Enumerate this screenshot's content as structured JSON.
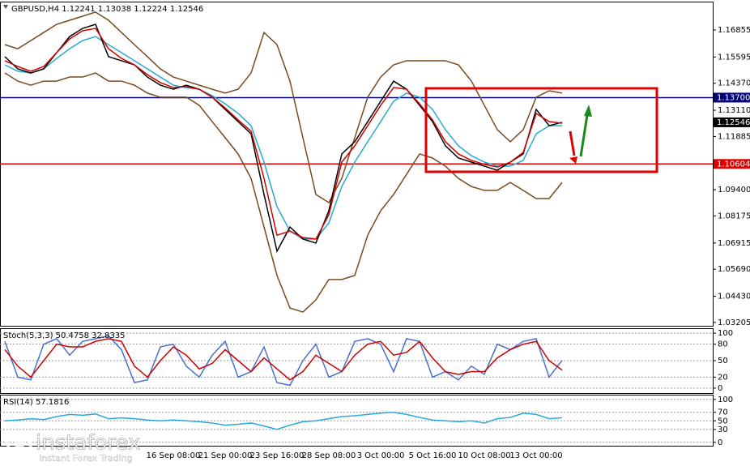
{
  "chart_data": [
    {
      "type": "line",
      "title": "GBPUSD,H4  1.12241 1.13038 1.12224 1.12546",
      "categories": [
        null,
        null,
        null,
        null,
        null,
        null,
        null,
        null,
        null,
        null,
        null,
        null,
        null,
        "16 Sep 08:00",
        null,
        null,
        null,
        "21 Sep 00:00",
        null,
        null,
        null,
        "23 Sep 16:00",
        null,
        null,
        null,
        "28 Sep 08:00",
        null,
        null,
        null,
        "3 Oct 00:00",
        null,
        null,
        null,
        "5 Oct 16:00",
        null,
        null,
        null,
        "10 Oct 08:00",
        null,
        null,
        null,
        "13 Oct 00:00",
        null,
        null
      ],
      "series": [
        {
          "color": "#7a4a1f",
          "values": [
            1.1617,
            1.1598,
            1.1636,
            1.1674,
            1.1712,
            1.1731,
            1.175,
            1.1769,
            1.1731,
            1.1674,
            1.1617,
            1.1561,
            1.1504,
            1.1466,
            1.1447,
            1.1428,
            1.1409,
            1.1391,
            1.1409,
            1.1485,
            1.1674,
            1.1617,
            1.1447,
            1.1183,
            1.0918,
            1.088,
            1.0993,
            1.1183,
            1.1372,
            1.1466,
            1.1523,
            1.1542,
            1.1542,
            1.1542,
            1.1542,
            1.1523,
            1.1447,
            1.1334,
            1.122,
            1.1164,
            1.122,
            1.1372,
            1.1402,
            1.1391
          ]
        },
        {
          "color": "#7a4a1f",
          "values": [
            1.1485,
            1.1447,
            1.1428,
            1.1447,
            1.1447,
            1.1466,
            1.1466,
            1.1485,
            1.1447,
            1.1447,
            1.1428,
            1.1391,
            1.1372,
            1.1372,
            1.1372,
            1.1334,
            1.1258,
            1.1183,
            1.1107,
            1.0993,
            1.0766,
            1.054,
            1.0388,
            1.0369,
            1.0426,
            1.0521,
            1.0521,
            1.054,
            1.0728,
            1.0842,
            1.0918,
            1.1012,
            1.1107,
            1.1088,
            1.105,
            1.0993,
            1.0955,
            1.0937,
            1.0937,
            1.0974,
            1.0937,
            1.0899,
            1.0899,
            1.0974
          ]
        },
        {
          "color": "#29a9d6",
          "values": [
            1.1523,
            1.1493,
            1.1485,
            1.1504,
            1.1553,
            1.1598,
            1.1636,
            1.1655,
            1.1617,
            1.158,
            1.1542,
            1.1504,
            1.1466,
            1.1428,
            1.1417,
            1.1409,
            1.1379,
            1.1341,
            1.1296,
            1.1239,
            1.1069,
            1.0861,
            1.0747,
            1.071,
            1.071,
            1.0785,
            1.0955,
            1.1069,
            1.1164,
            1.1258,
            1.1353,
            1.1391,
            1.1372,
            1.1315,
            1.122,
            1.1145,
            1.1099,
            1.1069,
            1.105,
            1.105,
            1.1077,
            1.1201,
            1.1239,
            1.1239
          ]
        },
        {
          "color": "#000000",
          "values": [
            1.1561,
            1.1504,
            1.1485,
            1.1504,
            1.158,
            1.1655,
            1.1693,
            1.1712,
            1.1561,
            1.1542,
            1.1523,
            1.1466,
            1.1428,
            1.1409,
            1.1428,
            1.1409,
            1.1372,
            1.1315,
            1.1258,
            1.1201,
            1.0918,
            1.0653,
            1.0766,
            1.071,
            1.0691,
            1.0842,
            1.1107,
            1.1164,
            1.1258,
            1.1353,
            1.1447,
            1.1409,
            1.1334,
            1.1258,
            1.1145,
            1.1088,
            1.1069,
            1.105,
            1.1031,
            1.1069,
            1.1107,
            1.1315,
            1.1239,
            1.12546
          ]
        },
        {
          "color": "#d40000",
          "values": [
            1.1542,
            1.1515,
            1.1493,
            1.1515,
            1.158,
            1.1644,
            1.1682,
            1.1693,
            1.1598,
            1.1553,
            1.1523,
            1.1477,
            1.144,
            1.1417,
            1.1421,
            1.1409,
            1.1372,
            1.1322,
            1.1266,
            1.1213,
            1.0993,
            1.0728,
            1.0747,
            1.0717,
            1.071,
            1.0823,
            1.1069,
            1.1145,
            1.1239,
            1.1334,
            1.1417,
            1.1409,
            1.1341,
            1.1266,
            1.1164,
            1.1107,
            1.1077,
            1.1058,
            1.1046,
            1.1069,
            1.1114,
            1.1296,
            1.1258,
            1.125
          ]
        }
      ],
      "ylim": [
        1.0305,
        1.1818
      ],
      "yticks": [
        1.16855,
        1.15595,
        {
          "value": 1.1437,
          "label": "1.14370"
        },
        {
          "value": 1.1311,
          "label": "1.13110"
        },
        1.11885,
        {
          "value": 1.094,
          "label": "1.09400"
        },
        1.08175,
        1.06915,
        {
          "value": 1.0569,
          "label": "1.05690"
        },
        {
          "value": 1.0443,
          "label": "1.04430"
        },
        1.03205
      ],
      "levels": [
        {
          "value": 1.137,
          "label": "1.13700",
          "color": "#00007a"
        },
        {
          "value": 1.10604,
          "color": "#e00000"
        }
      ],
      "last_price": 1.12546,
      "grid": false
    },
    {
      "type": "line",
      "title": "Stoch(5,3,3) 50.4758 32.8335",
      "series": [
        {
          "color": "#4a6fd0",
          "values": [
            85,
            20,
            15,
            80,
            90,
            60,
            85,
            90,
            95,
            70,
            10,
            15,
            75,
            80,
            40,
            20,
            60,
            85,
            20,
            30,
            75,
            10,
            5,
            50,
            80,
            20,
            30,
            85,
            90,
            80,
            30,
            90,
            85,
            20,
            30,
            15,
            40,
            25,
            80,
            70,
            85,
            90,
            20,
            50.4758
          ]
        },
        {
          "color": "#cc0000",
          "values": [
            70,
            40,
            20,
            50,
            80,
            75,
            75,
            85,
            90,
            85,
            40,
            20,
            50,
            75,
            60,
            35,
            45,
            70,
            50,
            30,
            55,
            35,
            15,
            30,
            60,
            45,
            30,
            60,
            80,
            85,
            60,
            65,
            85,
            55,
            30,
            25,
            30,
            30,
            55,
            70,
            80,
            85,
            50,
            32.8335
          ]
        }
      ],
      "ylim": [
        -9,
        109
      ],
      "yticks": [
        100,
        80,
        50,
        20,
        0
      ],
      "grid": true
    },
    {
      "type": "line",
      "title": "RSI(14) 57.1816",
      "series": [
        {
          "color": "#29a9e0",
          "values": [
            50,
            52,
            55,
            53,
            60,
            65,
            63,
            66,
            55,
            57,
            55,
            52,
            50,
            52,
            50,
            48,
            45,
            40,
            42,
            45,
            38,
            30,
            40,
            48,
            50,
            55,
            60,
            62,
            65,
            68,
            70,
            65,
            58,
            52,
            50,
            48,
            50,
            45,
            55,
            58,
            68,
            65,
            55,
            57.1816
          ]
        }
      ],
      "ylim": [
        -8,
        111
      ],
      "yticks": [
        100,
        70,
        50,
        30,
        0
      ],
      "grid": true
    }
  ],
  "watermark": {
    "brand": "instaforex",
    "tagline": "Instant Forex Trading"
  }
}
